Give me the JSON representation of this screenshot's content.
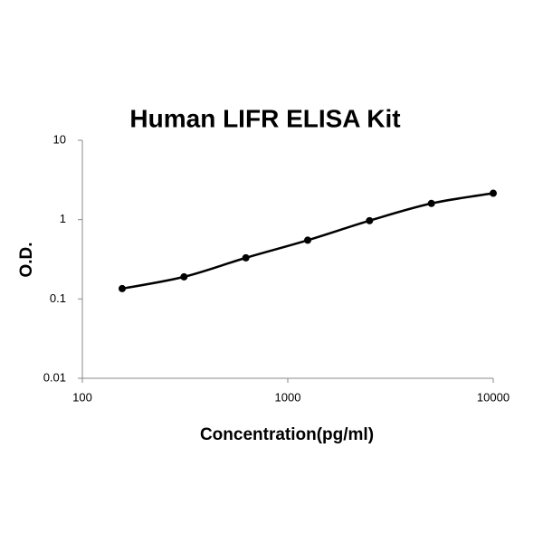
{
  "chart_data": {
    "type": "scatter",
    "title": "Human LIFR ELISA Kit",
    "x_label": "Concentration(pg/ml)",
    "y_label": "O.D.",
    "x": [
      156.25,
      312.5,
      625,
      1250,
      2500,
      5000,
      10000
    ],
    "series": [
      {
        "color": "#000000",
        "values": [
          0.135,
          0.19,
          0.33,
          0.55,
          0.97,
          1.6,
          2.15
        ]
      }
    ],
    "xscale": "log",
    "yscale": "log",
    "smooth_line": true,
    "xlim": [
      100,
      10000
    ],
    "ylim": [
      0.01,
      10
    ],
    "xticks": [
      100,
      1000,
      10000
    ],
    "yticks": [
      0.01,
      0.1,
      1,
      10
    ]
  }
}
